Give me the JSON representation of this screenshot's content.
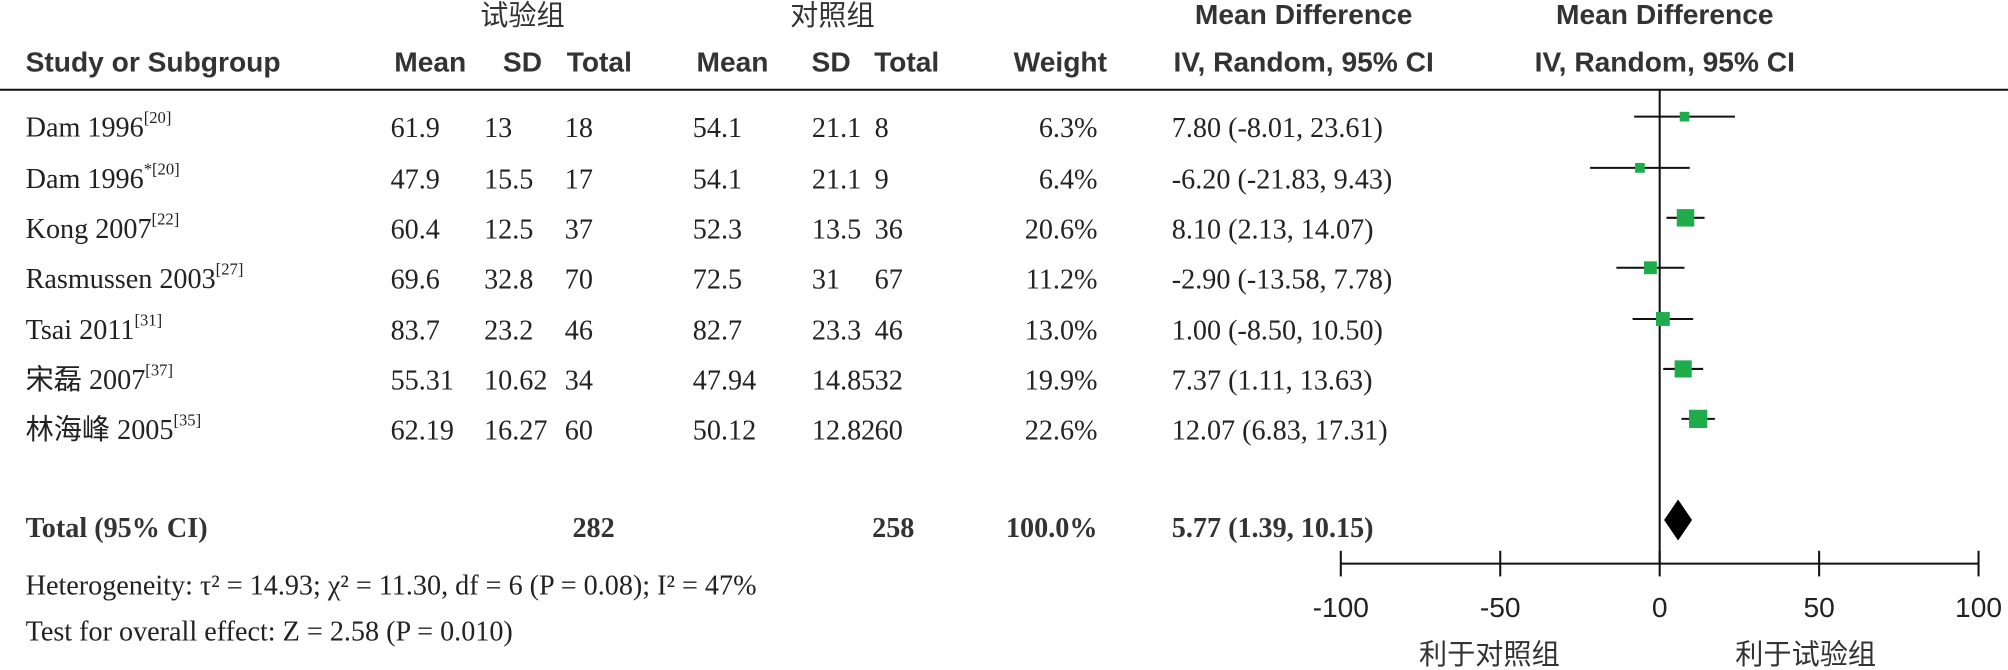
{
  "chart_data": {
    "type": "forest",
    "group_headers": [
      "试验组",
      "对照组"
    ],
    "headers": {
      "study": "Study or Subgroup",
      "mean": "Mean",
      "sd": "SD",
      "total": "Total",
      "weight": "Weight",
      "md_title": "Mean Difference",
      "md_method": "IV, Random, 95% CI"
    },
    "studies": [
      {
        "name": "Dam 1996",
        "ref": "[20]",
        "exp": [
          61.9,
          13,
          18
        ],
        "ctl": [
          54.1,
          21.1,
          8
        ],
        "weight": 6.3,
        "weight_label": "6.3%",
        "md": 7.8,
        "lo": -8.01,
        "hi": 23.61,
        "ci_label": "7.80 (-8.01, 23.61)"
      },
      {
        "name": "Dam 1996",
        "ref": "*[20]",
        "exp": [
          47.9,
          15.5,
          17
        ],
        "ctl": [
          54.1,
          21.1,
          9
        ],
        "weight": 6.4,
        "weight_label": "6.4%",
        "md": -6.2,
        "lo": -21.83,
        "hi": 9.43,
        "ci_label": "-6.20 (-21.83, 9.43)"
      },
      {
        "name": "Kong 2007",
        "ref": "[22]",
        "exp": [
          60.4,
          12.5,
          37
        ],
        "ctl": [
          52.3,
          13.5,
          36
        ],
        "weight": 20.6,
        "weight_label": "20.6%",
        "md": 8.1,
        "lo": 2.13,
        "hi": 14.07,
        "ci_label": "8.10 (2.13, 14.07)"
      },
      {
        "name": "Rasmussen 2003",
        "ref": "[27]",
        "exp": [
          69.6,
          32.8,
          70
        ],
        "ctl": [
          72.5,
          31,
          67
        ],
        "weight": 11.2,
        "weight_label": "11.2%",
        "md": -2.9,
        "lo": -13.58,
        "hi": 7.78,
        "ci_label": "-2.90 (-13.58, 7.78)"
      },
      {
        "name": "Tsai 2011",
        "ref": "[31]",
        "exp": [
          83.7,
          23.2,
          46
        ],
        "ctl": [
          82.7,
          23.3,
          46
        ],
        "weight": 13.0,
        "weight_label": "13.0%",
        "md": 1.0,
        "lo": -8.5,
        "hi": 10.5,
        "ci_label": "1.00 (-8.50, 10.50)"
      },
      {
        "name": "宋磊 2007",
        "ref": "[37]",
        "exp": [
          55.31,
          10.62,
          34
        ],
        "ctl": [
          47.94,
          14.85,
          32
        ],
        "weight": 19.9,
        "weight_label": "19.9%",
        "md": 7.37,
        "lo": 1.11,
        "hi": 13.63,
        "ci_label": "7.37 (1.11, 13.63)"
      },
      {
        "name": "林海峰 2005",
        "ref": "[35]",
        "exp": [
          62.19,
          16.27,
          60
        ],
        "ctl": [
          50.12,
          12.82,
          60
        ],
        "weight": 22.6,
        "weight_label": "22.6%",
        "md": 12.07,
        "lo": 6.83,
        "hi": 17.31,
        "ci_label": "12.07 (6.83, 17.31)"
      }
    ],
    "total": {
      "name": "Total (95% CI)",
      "exp_total": 282,
      "ctl_total": 258,
      "weight": 100.0,
      "weight_label": "100.0%",
      "md": 5.77,
      "lo": 1.39,
      "hi": 10.15,
      "ci_label": "5.77 (1.39, 10.15)"
    },
    "heterogeneity": "Heterogeneity: τ² = 14.93; χ² = 11.30, df = 6 (P = 0.08); I² = 47%",
    "overall_effect": "Test for overall effect: Z = 2.58 (P = 0.010)",
    "xlim": [
      -100,
      100
    ],
    "xticks": [
      -100,
      -50,
      0,
      50,
      100
    ],
    "x_labels": [
      "利于对照组",
      "利于试验组"
    ],
    "marker_color": "#1fad4b"
  }
}
